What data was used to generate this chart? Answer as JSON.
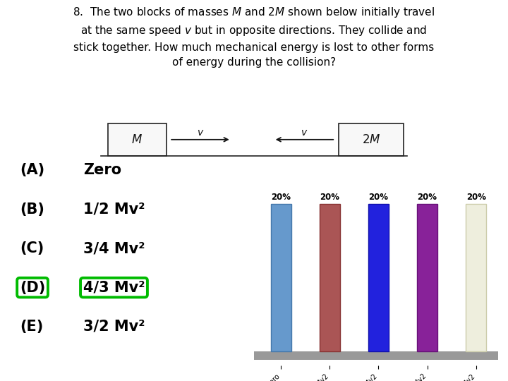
{
  "title": "8.  The two blocks of masses $M$ and 2$M$ shown below initially travel\nat the same speed $v$ but in opposite directions. They collide and\nstick together. How much mechanical energy is lost to other forms\nof energy during the collision?",
  "categories": [
    "(A) Zero",
    "(B) 1/2 Mv2",
    "(C) 3/4 Mv2",
    "(D) 4/3 Mv2",
    "(E) 3/2 Mv2"
  ],
  "values": [
    20,
    20,
    20,
    20,
    20
  ],
  "bar_colors": [
    "#6699CC",
    "#AA5555",
    "#2222DD",
    "#882299",
    "#EEEEDD"
  ],
  "bar_edge_left": [
    "#4477AA",
    "#883333",
    "#1111AA",
    "#661177",
    "#CCCCAA"
  ],
  "bar_edge_right": [
    "#88BBEE",
    "#CC7777",
    "#5555FF",
    "#AA44CC",
    "#FFFFFF"
  ],
  "percentage_labels": [
    "20%",
    "20%",
    "20%",
    "20%",
    "20%"
  ],
  "answer_letters": [
    "(A)",
    "(B)",
    "(C)",
    "(D)",
    "(E)"
  ],
  "answer_texts": [
    "Zero",
    "1/2 Mv²",
    "3/4 Mv²",
    "4/3 Mv²",
    "3/2 Mv²"
  ],
  "highlight_idx": 3,
  "highlight_color": "#00BB00",
  "background_color": "#FFFFFF",
  "text_color": "#000000",
  "floor_color": "#888888",
  "title_fontsize": 11.0,
  "answer_fontsize": 15,
  "pct_fontsize": 8.5,
  "tick_fontsize": 7
}
